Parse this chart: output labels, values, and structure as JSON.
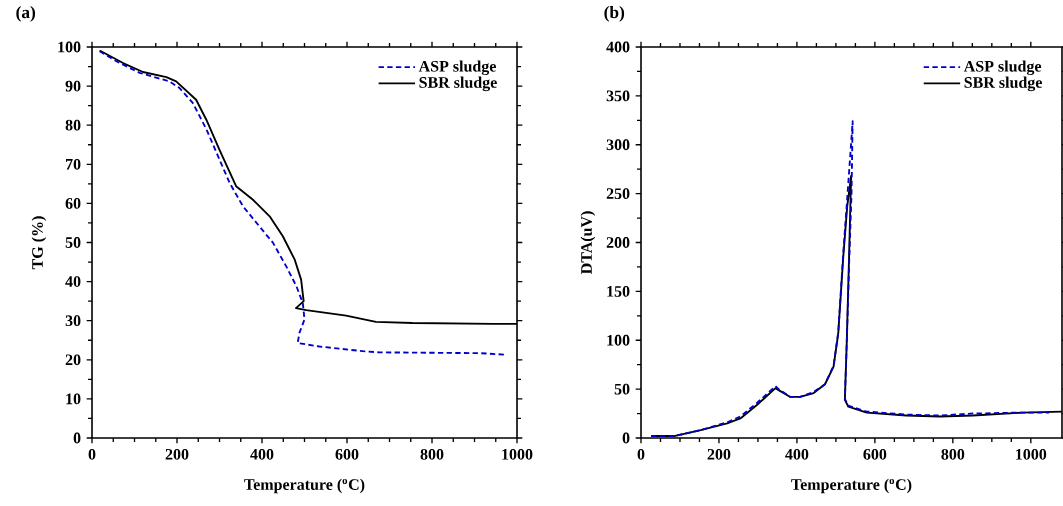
{
  "chart_data": [
    {
      "type": "line",
      "title": "(a)",
      "xlabel": "Temperature ($^{o}$C)",
      "ylabel": "TG (%)",
      "xlim": [
        0,
        1000
      ],
      "xticks": [
        0,
        200,
        400,
        600,
        800,
        1000
      ],
      "ylim": [
        0,
        100
      ],
      "yticks": [
        0,
        10,
        20,
        30,
        40,
        50,
        60,
        70,
        80,
        90,
        100
      ],
      "legend": "top right",
      "series": [
        {
          "name": "ASP sludge",
          "color": "#0000cc",
          "line_style": "dashed",
          "x": [
            18,
            65,
            112,
            182,
            206,
            237,
            269,
            300,
            324,
            355,
            394,
            426,
            457,
            481,
            496,
            500,
            488,
            484,
            535,
            637,
            676,
            912,
            975
          ],
          "values": [
            98.9,
            95.9,
            93.4,
            91.2,
            89.5,
            85.7,
            79,
            71.2,
            65.2,
            59.3,
            54.1,
            49.9,
            43.9,
            38.8,
            34.5,
            30.3,
            26.9,
            24.3,
            23.4,
            22.2,
            21.9,
            21.7,
            21.3
          ]
        },
        {
          "name": "SBR sludge",
          "color": "#000000",
          "line_style": "solid",
          "x": [
            18,
            73,
            120,
            175,
            198,
            245,
            269,
            300,
            339,
            378,
            418,
            449,
            477,
            492,
            498,
            480,
            504,
            598,
            668,
            754,
            943,
            1000
          ],
          "values": [
            99.1,
            95.9,
            93.6,
            92.3,
            91.2,
            86.5,
            81.4,
            73.7,
            64.4,
            61,
            56.7,
            51.6,
            45.6,
            40.5,
            35,
            33.2,
            32.7,
            31.3,
            29.7,
            29.4,
            29.2,
            29.2
          ]
        }
      ]
    },
    {
      "type": "line",
      "title": "(b)",
      "xlabel": "Temperature ($^{o}$C)",
      "ylabel": "DTA(uV)",
      "xlim": [
        0,
        1080
      ],
      "xticks": [
        0,
        200,
        400,
        600,
        800,
        1000
      ],
      "ylim": [
        0,
        400
      ],
      "yticks": [
        0,
        50,
        100,
        150,
        200,
        250,
        300,
        350,
        400
      ],
      "legend": "top right",
      "series": [
        {
          "name": "ASP sludge",
          "color": "#0000cc",
          "line_style": "dashed",
          "x": [
            26,
            85,
            153,
            221,
            255,
            298,
            345,
            353,
            383,
            408,
            443,
            472,
            494,
            506,
            519,
            529,
            537,
            543,
            540,
            534,
            528,
            523,
            532,
            579,
            681,
            766,
            851,
            979,
            1047
          ],
          "values": [
            2,
            2,
            8,
            16,
            22,
            36,
            53,
            50,
            42,
            42,
            47,
            55,
            74,
            108,
            190,
            245,
            290,
            324,
            250,
            180,
            100,
            40,
            33,
            27,
            24,
            23,
            25,
            26,
            26
          ]
        },
        {
          "name": "SBR sludge",
          "color": "#000000",
          "line_style": "solid",
          "x": [
            26,
            85,
            153,
            221,
            255,
            298,
            345,
            353,
            383,
            408,
            443,
            472,
            494,
            506,
            519,
            529,
            539,
            534,
            528,
            523,
            532,
            579,
            681,
            766,
            851,
            979,
            1080
          ],
          "values": [
            2,
            2,
            8,
            15,
            20,
            34,
            51,
            49,
            42,
            42,
            46,
            55,
            73,
            107,
            186,
            237,
            268,
            189,
            100,
            39,
            32,
            26,
            23,
            22,
            23,
            26,
            27
          ]
        }
      ]
    }
  ]
}
